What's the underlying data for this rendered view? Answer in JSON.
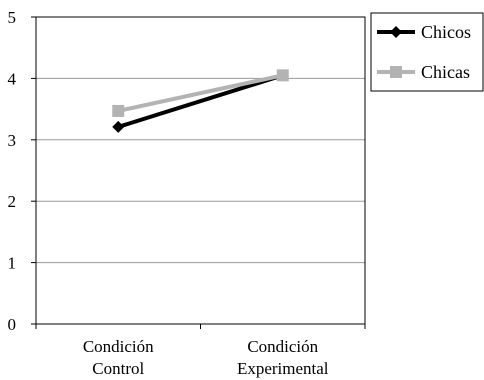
{
  "chart_data": {
    "type": "line",
    "categories": [
      "Condición Control",
      "Condición Experimental"
    ],
    "category_lines": [
      [
        "Condición",
        "Control"
      ],
      [
        "Condición",
        "Experimental"
      ]
    ],
    "ylim": [
      0,
      5
    ],
    "yticks": [
      0,
      1,
      2,
      3,
      4,
      5
    ],
    "grid": true,
    "legend_position": "right-top",
    "series": [
      {
        "name": "Chicos",
        "values": [
          3.21,
          4.05
        ],
        "color": "#000000",
        "marker": "diamond"
      },
      {
        "name": "Chicas",
        "values": [
          3.47,
          4.05
        ],
        "color": "#b3b3b3",
        "marker": "square"
      }
    ]
  }
}
